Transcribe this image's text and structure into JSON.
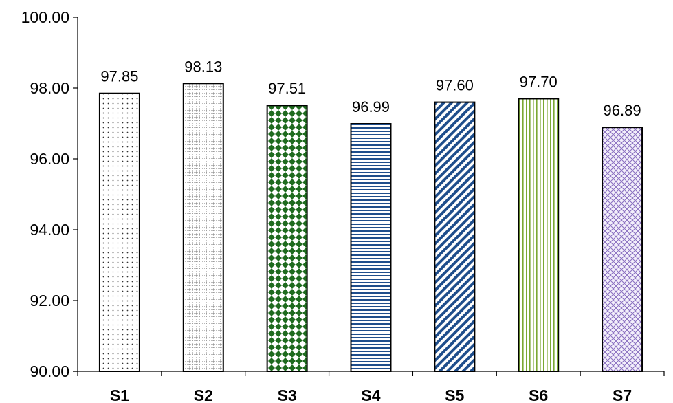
{
  "chart_data": {
    "type": "bar",
    "title": "",
    "xlabel": "",
    "ylabel": "",
    "categories": [
      "S1",
      "S2",
      "S3",
      "S4",
      "S5",
      "S6",
      "S7"
    ],
    "values": [
      97.85,
      98.13,
      97.51,
      96.99,
      97.6,
      97.7,
      96.89
    ],
    "value_labels": [
      "97.85",
      "98.13",
      "97.51",
      "96.99",
      "97.60",
      "97.70",
      "96.89"
    ],
    "ylim": [
      90,
      100
    ],
    "yticks": [
      90,
      92,
      94,
      96,
      98,
      100
    ],
    "ytick_labels": [
      "90.00",
      "92.00",
      "94.00",
      "96.00",
      "98.00",
      "100.00"
    ],
    "grid": false,
    "legend": "none",
    "patterns": [
      "dots",
      "grid",
      "green-diamonds",
      "horizontal-lines",
      "diagonal-stripes",
      "vertical-lines",
      "purple-crosshatch"
    ],
    "colors": {
      "axis": "#000000",
      "bar_outline": "#000000",
      "s3_fill": "#1f6b1f",
      "s4_lines": "#1f4e8c",
      "s5_stripes": "#1f4e8c",
      "s6_lines": "#7aa833",
      "s7_hatch": "#8a6fc0"
    }
  }
}
